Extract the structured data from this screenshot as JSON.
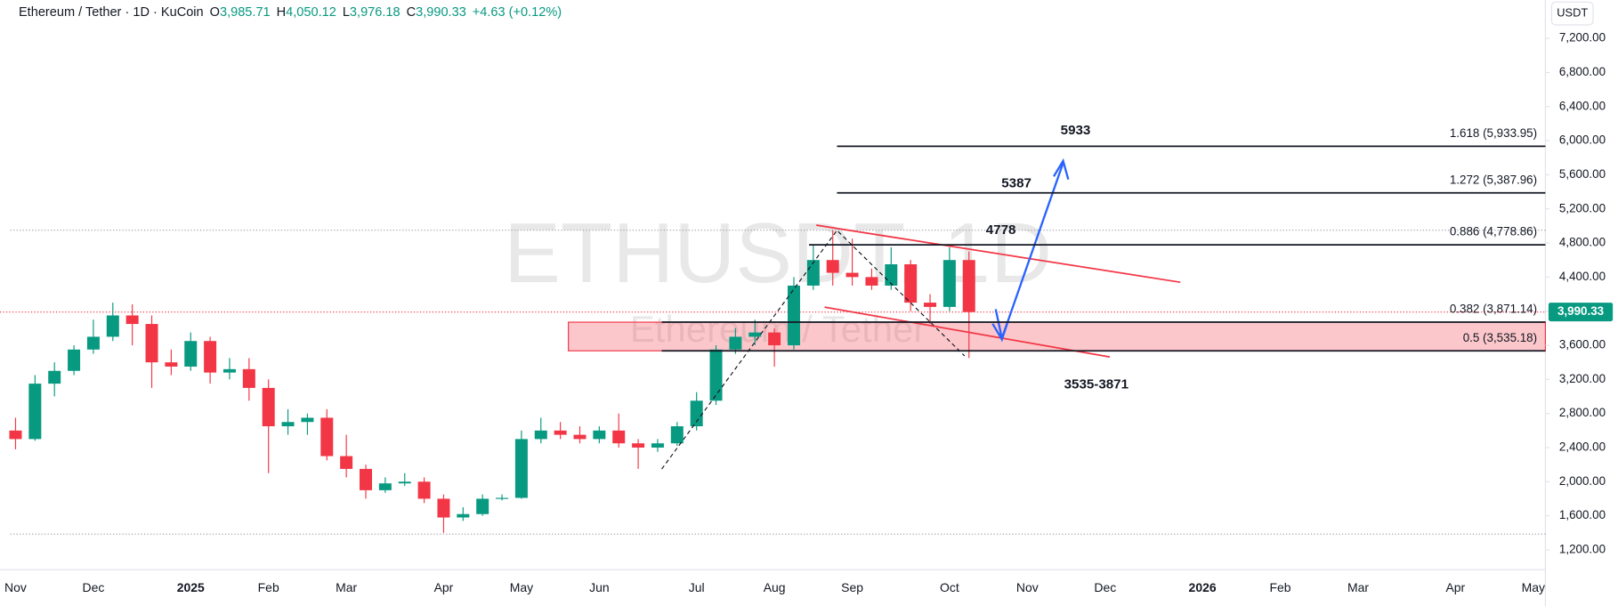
{
  "chart_data": {
    "type": "candlestick",
    "title": "Ethereum / Tether · 1D · KuCoin",
    "ohlc_header": [
      {
        "label": "O",
        "value": "3,985.71"
      },
      {
        "label": "H",
        "value": "4,050.12"
      },
      {
        "label": "L",
        "value": "3,976.18"
      },
      {
        "label": "C",
        "value": "3,990.33"
      }
    ],
    "change": "+4.63 (+0.12%)",
    "watermark": "ETHUSDT, 1D",
    "watermark_subtitle": "Ethereum / Tether",
    "currency_button": "USDT",
    "categories": [
      "Nov",
      null,
      null,
      null,
      "Dec",
      null,
      null,
      null,
      null,
      "2025",
      null,
      null,
      null,
      "Feb",
      null,
      null,
      null,
      "Mar",
      null,
      null,
      null,
      null,
      "Apr",
      null,
      null,
      null,
      "May",
      null,
      null,
      null,
      "Jun",
      null,
      null,
      null,
      null,
      "Jul",
      null,
      null,
      null,
      "Aug",
      null,
      null,
      null,
      "Sep",
      null,
      null,
      null,
      null,
      "Oct",
      null,
      null,
      null,
      "Nov",
      null,
      null,
      null,
      "Dec",
      null,
      null,
      null,
      null,
      "2026",
      null,
      null,
      null,
      "Feb",
      null,
      null,
      null,
      "Mar",
      null,
      null,
      null,
      null,
      "Apr",
      null,
      null,
      null,
      "May"
    ],
    "open": [
      2600,
      2500,
      3150,
      3300,
      3550,
      3700,
      3950,
      3850,
      3400,
      3350,
      3650,
      3280,
      3320,
      3100,
      2650,
      2700,
      2750,
      2300,
      2150,
      1900,
      1980,
      2000,
      1800,
      1580,
      1620,
      1800,
      1810,
      2500,
      2600,
      2550,
      2500,
      2600,
      2450,
      2400,
      2450,
      2650,
      2950,
      3550,
      3700,
      3750,
      3600,
      4300,
      4600,
      4450,
      4400,
      4300,
      4550,
      4100,
      4050,
      4600,
      null,
      null,
      null,
      null,
      null,
      null,
      null,
      null,
      null,
      null,
      null,
      null,
      null,
      null,
      null,
      null,
      null,
      null,
      null,
      null,
      null,
      null,
      null,
      null,
      null,
      null,
      null,
      null,
      null
    ],
    "high": [
      2750,
      3250,
      3400,
      3600,
      3900,
      4100,
      4080,
      3950,
      3550,
      3750,
      3700,
      3450,
      3450,
      3200,
      2850,
      2800,
      2850,
      2550,
      2200,
      2050,
      2100,
      2050,
      1850,
      1700,
      1850,
      1850,
      2600,
      2750,
      2700,
      2650,
      2650,
      2800,
      2500,
      2500,
      2700,
      3050,
      3600,
      3800,
      3900,
      3800,
      4400,
      4780,
      4950,
      4850,
      4500,
      4750,
      4600,
      4200,
      4750,
      4700,
      null,
      null,
      null,
      null,
      null,
      null,
      null,
      null,
      null,
      null,
      null,
      null,
      null,
      null,
      null,
      null,
      null,
      null,
      null,
      null,
      null,
      null,
      null,
      null,
      null,
      null,
      null,
      null,
      null
    ],
    "low": [
      2380,
      2480,
      3000,
      3250,
      3500,
      3650,
      3600,
      3100,
      3250,
      3300,
      3150,
      3200,
      2950,
      2100,
      2550,
      2550,
      2250,
      2050,
      1800,
      1870,
      1950,
      1750,
      1400,
      1540,
      1600,
      1780,
      1800,
      2450,
      2500,
      2450,
      2450,
      2400,
      2150,
      2350,
      2420,
      2600,
      2900,
      3500,
      3600,
      3350,
      3550,
      4250,
      4300,
      4300,
      4250,
      4250,
      4000,
      3850,
      4000,
      3450,
      null,
      null,
      null,
      null,
      null,
      null,
      null,
      null,
      null,
      null,
      null,
      null,
      null,
      null,
      null,
      null,
      null,
      null,
      null,
      null,
      null,
      null,
      null,
      null,
      null,
      null,
      null,
      null,
      null
    ],
    "close": [
      2500,
      3150,
      3300,
      3550,
      3700,
      3950,
      3850,
      3400,
      3350,
      3650,
      3280,
      3320,
      3100,
      2650,
      2700,
      2750,
      2300,
      2150,
      1900,
      1980,
      2000,
      1800,
      1580,
      1620,
      1800,
      1810,
      2500,
      2600,
      2550,
      2500,
      2600,
      2450,
      2400,
      2450,
      2650,
      2950,
      3550,
      3700,
      3750,
      3600,
      4300,
      4600,
      4450,
      4400,
      4300,
      4550,
      4100,
      4050,
      4600,
      3990,
      null,
      null,
      null,
      null,
      null,
      null,
      null,
      null,
      null,
      null,
      null,
      null,
      null,
      null,
      null,
      null,
      null,
      null,
      null,
      null,
      null,
      null,
      null,
      null,
      null,
      null,
      null,
      null,
      null
    ],
    "up_color": "#089981",
    "down_color": "#f23645",
    "ylim": [
      980,
      7650
    ],
    "yticks": [
      {
        "value": 1200,
        "label": "1,200.00"
      },
      {
        "value": 1600,
        "label": "1,600.00"
      },
      {
        "value": 2000,
        "label": "2,000.00"
      },
      {
        "value": 2400,
        "label": "2,400.00"
      },
      {
        "value": 2800,
        "label": "2,800.00"
      },
      {
        "value": 3200,
        "label": "3,200.00"
      },
      {
        "value": 3600,
        "label": "3,600.00"
      },
      {
        "value": 4000,
        "label": "4,000.00"
      },
      {
        "value": 4400,
        "label": "4,400.00"
      },
      {
        "value": 4800,
        "label": "4,800.00"
      },
      {
        "value": 5200,
        "label": "5,200.00"
      },
      {
        "value": 5600,
        "label": "5,600.00"
      },
      {
        "value": 6000,
        "label": "6,000.00"
      },
      {
        "value": 6400,
        "label": "6,400.00"
      },
      {
        "value": 6800,
        "label": "6,800.00"
      },
      {
        "value": 7200,
        "label": "7,200.00"
      }
    ],
    "grid": false,
    "last_price": {
      "value": 3990.33,
      "label": "3,990.33"
    },
    "dotted_levels": [
      4950,
      1385
    ],
    "fib_levels": [
      {
        "value": 5933.95,
        "label": "1.618 (5,933.95)"
      },
      {
        "value": 5387.96,
        "label": "1.272 (5,387.96)"
      },
      {
        "value": 4778.86,
        "label": "0.886 (4,778.86)"
      },
      {
        "value": 3871.14,
        "label": "0.382 (3,871.14)"
      },
      {
        "value": 3535.18,
        "label": "0.5 (3,535.18)"
      }
    ],
    "zone": [
      3535.18,
      3871.14
    ],
    "annotations": [
      "5933",
      "5387",
      "4778",
      "3535-3871"
    ]
  }
}
